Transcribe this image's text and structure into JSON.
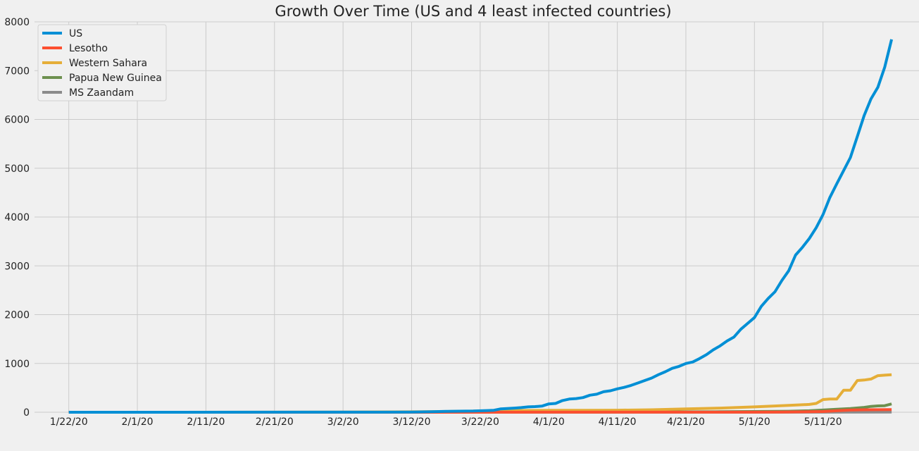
{
  "chart_data": {
    "type": "line",
    "title": "Growth Over Time (US and 4 least infected countries)",
    "xlabel": "",
    "ylabel": "",
    "ylim": [
      0,
      8000
    ],
    "yticks": [
      0,
      1000,
      2000,
      3000,
      4000,
      5000,
      6000,
      7000,
      8000
    ],
    "xlim_days": [
      -5,
      124
    ],
    "xtick_labels": [
      "1/22/20",
      "2/1/20",
      "2/11/20",
      "2/21/20",
      "3/2/20",
      "3/12/20",
      "3/22/20",
      "4/1/20",
      "4/11/20",
      "4/21/20",
      "5/1/20",
      "5/11/20"
    ],
    "xtick_days": [
      0,
      10,
      20,
      30,
      40,
      50,
      60,
      70,
      80,
      90,
      100,
      110
    ],
    "grid": true,
    "legend_position": "top-left",
    "series": [
      {
        "name": "US",
        "color": "#008fd5",
        "points": [
          [
            0,
            0
          ],
          [
            45,
            2
          ],
          [
            50,
            5
          ],
          [
            53,
            10
          ],
          [
            55,
            18
          ],
          [
            57,
            22
          ],
          [
            59,
            25
          ],
          [
            61,
            35
          ],
          [
            62,
            40
          ],
          [
            63,
            70
          ],
          [
            65,
            85
          ],
          [
            66,
            95
          ],
          [
            67,
            110
          ],
          [
            68,
            115
          ],
          [
            69,
            125
          ],
          [
            70,
            170
          ],
          [
            71,
            180
          ],
          [
            72,
            240
          ],
          [
            73,
            270
          ],
          [
            74,
            280
          ],
          [
            75,
            300
          ],
          [
            76,
            350
          ],
          [
            77,
            370
          ],
          [
            78,
            420
          ],
          [
            79,
            440
          ],
          [
            80,
            480
          ],
          [
            81,
            510
          ],
          [
            82,
            550
          ],
          [
            83,
            600
          ],
          [
            84,
            650
          ],
          [
            85,
            700
          ],
          [
            86,
            770
          ],
          [
            87,
            830
          ],
          [
            88,
            900
          ],
          [
            89,
            940
          ],
          [
            90,
            1000
          ],
          [
            91,
            1030
          ],
          [
            92,
            1100
          ],
          [
            93,
            1180
          ],
          [
            94,
            1280
          ],
          [
            95,
            1360
          ],
          [
            96,
            1460
          ],
          [
            97,
            1540
          ],
          [
            98,
            1700
          ],
          [
            99,
            1820
          ],
          [
            100,
            1940
          ],
          [
            101,
            2170
          ],
          [
            102,
            2330
          ],
          [
            103,
            2470
          ],
          [
            104,
            2700
          ],
          [
            105,
            2900
          ],
          [
            106,
            3220
          ],
          [
            107,
            3380
          ],
          [
            108,
            3560
          ],
          [
            109,
            3780
          ],
          [
            110,
            4050
          ],
          [
            111,
            4400
          ],
          [
            112,
            4680
          ],
          [
            113,
            4950
          ],
          [
            114,
            5220
          ],
          [
            115,
            5650
          ],
          [
            116,
            6080
          ],
          [
            117,
            6420
          ],
          [
            118,
            6660
          ],
          [
            119,
            7070
          ],
          [
            120,
            7640
          ]
        ]
      },
      {
        "name": "Lesotho",
        "color": "#fc4f30",
        "points": [
          [
            0,
            0
          ],
          [
            100,
            2
          ],
          [
            104,
            5
          ],
          [
            108,
            10
          ],
          [
            110,
            15
          ],
          [
            112,
            30
          ],
          [
            114,
            45
          ],
          [
            116,
            50
          ],
          [
            120,
            55
          ]
        ]
      },
      {
        "name": "Western Sahara",
        "color": "#e5ae38",
        "points": [
          [
            0,
            0
          ],
          [
            40,
            2
          ],
          [
            50,
            8
          ],
          [
            55,
            15
          ],
          [
            60,
            25
          ],
          [
            65,
            35
          ],
          [
            70,
            40
          ],
          [
            75,
            40
          ],
          [
            80,
            42
          ],
          [
            85,
            50
          ],
          [
            90,
            70
          ],
          [
            95,
            85
          ],
          [
            100,
            110
          ],
          [
            105,
            140
          ],
          [
            108,
            160
          ],
          [
            109,
            180
          ],
          [
            110,
            260
          ],
          [
            111,
            270
          ],
          [
            112,
            270
          ],
          [
            113,
            450
          ],
          [
            114,
            450
          ],
          [
            115,
            650
          ],
          [
            116,
            660
          ],
          [
            117,
            680
          ],
          [
            118,
            750
          ],
          [
            119,
            760
          ],
          [
            120,
            770
          ]
        ]
      },
      {
        "name": "Papua New Guinea",
        "color": "#6d904f",
        "points": [
          [
            0,
            0
          ],
          [
            60,
            2
          ],
          [
            80,
            5
          ],
          [
            95,
            10
          ],
          [
            100,
            15
          ],
          [
            105,
            20
          ],
          [
            108,
            30
          ],
          [
            110,
            45
          ],
          [
            112,
            60
          ],
          [
            114,
            75
          ],
          [
            116,
            100
          ],
          [
            117,
            120
          ],
          [
            118,
            130
          ],
          [
            119,
            135
          ],
          [
            120,
            170
          ]
        ]
      },
      {
        "name": "MS Zaandam",
        "color": "#8b8b8b",
        "points": [
          [
            0,
            0
          ],
          [
            60,
            2
          ],
          [
            120,
            3
          ]
        ]
      }
    ]
  }
}
